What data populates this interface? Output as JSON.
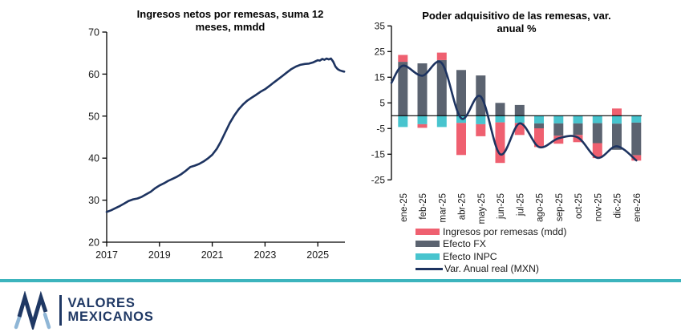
{
  "left_chart": {
    "title_line1": "Ingresos netos por remesas, suma 12",
    "title_line2": "meses, mmdd"
  },
  "right_chart": {
    "title_line1": "Poder adquisitivo de las remesas, var.",
    "title_line2": "anual %"
  },
  "legend": {
    "items": [
      {
        "label": "Ingresos por remesas (mdd)",
        "color": "#ef6070",
        "type": "rect",
        "icon": "pink-swatch"
      },
      {
        "label": "Efecto FX",
        "color": "#5b6370",
        "type": "rect",
        "icon": "gray-swatch"
      },
      {
        "label": "Efecto INPC",
        "color": "#48c4ce",
        "type": "rect",
        "icon": "cyan-swatch"
      },
      {
        "label": "Var. Anual real (MXN)",
        "color": "#1d3360",
        "type": "line",
        "icon": "navy-line-swatch"
      }
    ]
  },
  "footer": {
    "logo_line1": "VALORES",
    "logo_line2": "MEXICANOS",
    "navy": "#1f3864",
    "light_blue": "#8fb6d6",
    "divider_color": "#3cb4bd"
  },
  "chart_data": [
    {
      "type": "line",
      "title": "Ingresos netos por remesas, suma 12 meses, mmdd",
      "ylabel": "",
      "xlabel": "",
      "ylim": [
        20,
        70
      ],
      "yticks": [
        20,
        30,
        40,
        50,
        60,
        70
      ],
      "xticks": [
        2017,
        2019,
        2021,
        2023,
        2025
      ],
      "xlim": [
        2016.85,
        2026.1
      ],
      "line_color": "#1d3360",
      "x": [
        2017.0,
        2017.17,
        2017.33,
        2017.5,
        2017.67,
        2017.83,
        2018.0,
        2018.17,
        2018.33,
        2018.5,
        2018.67,
        2018.83,
        2019.0,
        2019.17,
        2019.33,
        2019.5,
        2019.67,
        2019.83,
        2020.0,
        2020.17,
        2020.33,
        2020.5,
        2020.67,
        2020.83,
        2021.0,
        2021.17,
        2021.33,
        2021.5,
        2021.67,
        2021.83,
        2022.0,
        2022.17,
        2022.33,
        2022.5,
        2022.67,
        2022.83,
        2023.0,
        2023.17,
        2023.33,
        2023.5,
        2023.67,
        2023.83,
        2024.0,
        2024.17,
        2024.33,
        2024.5,
        2024.67,
        2024.83,
        2025.0,
        2025.08,
        2025.17,
        2025.25,
        2025.33,
        2025.42,
        2025.5,
        2025.58,
        2025.67,
        2025.75,
        2025.83,
        2025.92,
        2026.0
      ],
      "values": [
        27.2,
        27.6,
        28.1,
        28.6,
        29.2,
        29.8,
        30.2,
        30.4,
        30.8,
        31.4,
        32.0,
        32.8,
        33.5,
        34.0,
        34.6,
        35.1,
        35.6,
        36.2,
        37.0,
        37.9,
        38.2,
        38.6,
        39.2,
        39.9,
        40.8,
        42.2,
        44.0,
        46.2,
        48.4,
        50.1,
        51.6,
        52.8,
        53.7,
        54.4,
        55.1,
        55.8,
        56.4,
        57.2,
        58.0,
        58.8,
        59.6,
        60.4,
        61.2,
        61.8,
        62.2,
        62.4,
        62.5,
        62.8,
        63.3,
        63.2,
        63.6,
        63.4,
        63.7,
        63.5,
        63.7,
        63.0,
        61.8,
        61.2,
        60.9,
        60.7,
        60.6
      ]
    },
    {
      "type": "bar+line",
      "title": "Poder adquisitivo de las remesas, var. anual %",
      "ylim": [
        -25,
        35
      ],
      "yticks": [
        -25,
        -15,
        -5,
        5,
        15,
        25,
        35
      ],
      "categories": [
        "ene-25",
        "feb-25",
        "mar-25",
        "abr-25",
        "may-25",
        "jun-25",
        "jul-25",
        "ago-25",
        "sep-25",
        "oct-25",
        "nov-25",
        "dic-25",
        "ene-26"
      ],
      "stack_order": [
        "Efecto INPC",
        "Efecto FX",
        "Ingresos por remesas (mdd)"
      ],
      "series": [
        {
          "name": "Ingresos por remesas (mdd)",
          "color": "#ef6070",
          "values": [
            2.7,
            -1.4,
            2.9,
            -12.5,
            -4.7,
            -15.8,
            -4.7,
            -7.3,
            -3.1,
            -2.8,
            -5.8,
            2.8,
            -2.1
          ]
        },
        {
          "name": "Efecto FX",
          "color": "#5b6370",
          "values": [
            21.0,
            20.4,
            21.7,
            17.8,
            15.7,
            5.0,
            4.2,
            -1.9,
            -4.8,
            -4.5,
            -7.8,
            -10.2,
            -12.7
          ]
        },
        {
          "name": "Efecto INPC",
          "color": "#48c4ce",
          "values": [
            -4.4,
            -3.3,
            -4.4,
            -2.8,
            -3.3,
            -2.6,
            -2.8,
            -3.0,
            -3.0,
            -3.0,
            -2.9,
            -3.1,
            -2.7
          ]
        }
      ],
      "line": {
        "name": "Var. Anual real (MXN)",
        "color": "#1d3360",
        "start_value": 12.8,
        "values": [
          19.5,
          15.6,
          20.5,
          -1.0,
          7.5,
          -15.0,
          -3.0,
          -12.2,
          -8.8,
          -8.5,
          -16.4,
          -11.9,
          -17.4
        ]
      }
    }
  ]
}
